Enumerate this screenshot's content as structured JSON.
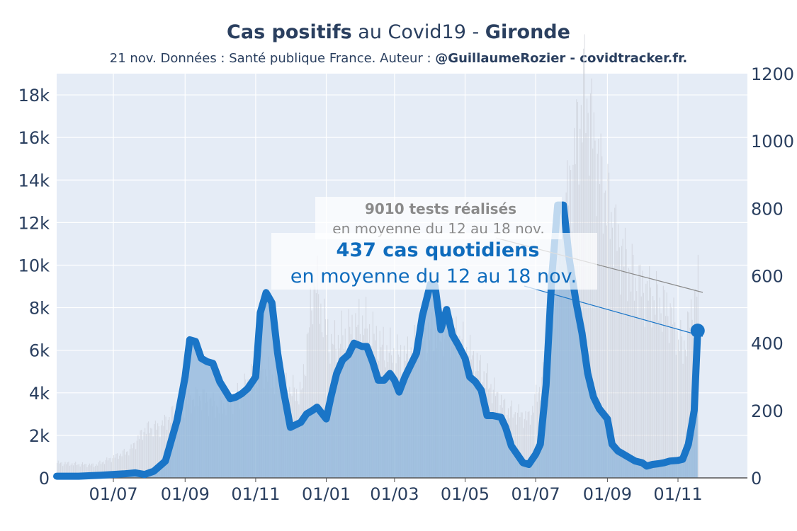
{
  "header": {
    "title_bold": "Cas positifs",
    "title_mid": " au Covid19 - ",
    "title_region": "Gironde",
    "subtitle_plain": "21 nov. Données : Santé publique France. Auteur : ",
    "subtitle_bold": "@GuillaumeRozier - covidtracker.fr."
  },
  "chart_data": {
    "type": "line",
    "title": "Cas positifs au Covid19 - Gironde",
    "x_axis": {
      "ticks": [
        "01/07",
        "01/09",
        "01/11",
        "01/01",
        "01/03",
        "01/05",
        "01/07",
        "01/09",
        "01/11"
      ],
      "range": [
        "2020-05-13",
        "2021-12-31"
      ]
    },
    "y_left": {
      "ticks": [
        "0",
        "2k",
        "4k",
        "6k",
        "8k",
        "10k",
        "12k",
        "14k",
        "16k",
        "18k"
      ],
      "range": [
        0,
        19000
      ],
      "series": "Tests réalisés (moyenne 7 jours)"
    },
    "y_right": {
      "ticks": [
        "0",
        "200",
        "400",
        "600",
        "800",
        "1000",
        "1200"
      ],
      "range": [
        0,
        1200
      ],
      "series": "Cas quotidiens (moyenne 7 jours)"
    },
    "grid": true,
    "colors": {
      "cases": "#1a75c7",
      "tests": "#c8ccd4",
      "cases_fill": "#8db6db",
      "background": "#e5ecf6"
    },
    "series": [
      {
        "axis": "right",
        "x": [
          "2020-05-13",
          "2020-06-01",
          "2020-06-20",
          "2020-07-10",
          "2020-07-20",
          "2020-07-28",
          "2020-08-05",
          "2020-08-15",
          "2020-08-25",
          "2020-09-01",
          "2020-09-05",
          "2020-09-10",
          "2020-09-15",
          "2020-09-20",
          "2020-09-25",
          "2020-10-01",
          "2020-10-10",
          "2020-10-15",
          "2020-10-20",
          "2020-10-25",
          "2020-11-01",
          "2020-11-05",
          "2020-11-10",
          "2020-11-15",
          "2020-11-20",
          "2020-11-25",
          "2020-12-01",
          "2020-12-10",
          "2020-12-15",
          "2020-12-20",
          "2020-12-24",
          "2021-01-01",
          "2021-01-05",
          "2021-01-10",
          "2021-01-15",
          "2021-01-20",
          "2021-01-25",
          "2021-02-01",
          "2021-02-05",
          "2021-02-10",
          "2021-02-15",
          "2021-02-20",
          "2021-02-25",
          "2021-03-01",
          "2021-03-05",
          "2021-03-10",
          "2021-03-15",
          "2021-03-20",
          "2021-03-25",
          "2021-04-01",
          "2021-04-05",
          "2021-04-10",
          "2021-04-15",
          "2021-04-20",
          "2021-04-25",
          "2021-05-01",
          "2021-05-05",
          "2021-05-10",
          "2021-05-15",
          "2021-05-20",
          "2021-05-25",
          "2021-06-01",
          "2021-06-05",
          "2021-06-10",
          "2021-06-15",
          "2021-06-20",
          "2021-06-25",
          "2021-07-01",
          "2021-07-05",
          "2021-07-10",
          "2021-07-15",
          "2021-07-20",
          "2021-07-25",
          "2021-07-30",
          "2021-08-05",
          "2021-08-10",
          "2021-08-15",
          "2021-08-20",
          "2021-08-25",
          "2021-09-01",
          "2021-09-05",
          "2021-09-10",
          "2021-09-15",
          "2021-09-20",
          "2021-09-25",
          "2021-10-01",
          "2021-10-05",
          "2021-10-10",
          "2021-10-15",
          "2021-10-20",
          "2021-10-25",
          "2021-11-01",
          "2021-11-05",
          "2021-11-10",
          "2021-11-15",
          "2021-11-18"
        ],
        "y": [
          5,
          5,
          8,
          12,
          15,
          10,
          20,
          50,
          170,
          300,
          410,
          405,
          355,
          345,
          340,
          285,
          235,
          240,
          250,
          265,
          300,
          490,
          550,
          520,
          370,
          260,
          150,
          165,
          190,
          200,
          210,
          175,
          240,
          310,
          350,
          365,
          400,
          390,
          390,
          345,
          290,
          290,
          310,
          290,
          255,
          300,
          335,
          370,
          480,
          575,
          570,
          440,
          500,
          425,
          395,
          355,
          300,
          285,
          260,
          185,
          185,
          180,
          150,
          95,
          70,
          45,
          40,
          70,
          100,
          275,
          600,
          810,
          810,
          650,
          520,
          430,
          310,
          240,
          205,
          175,
          100,
          80,
          70,
          60,
          50,
          45,
          35,
          40,
          42,
          45,
          50,
          52,
          55,
          100,
          200,
          437
        ]
      }
    ],
    "annotations": [
      {
        "bold": "9010 tests réalisés",
        "text": "en moyenne du 12 au 18 nov."
      },
      {
        "bold": "437 cas quotidiens",
        "text": "en moyenne du 12 au 18 nov."
      }
    ]
  }
}
